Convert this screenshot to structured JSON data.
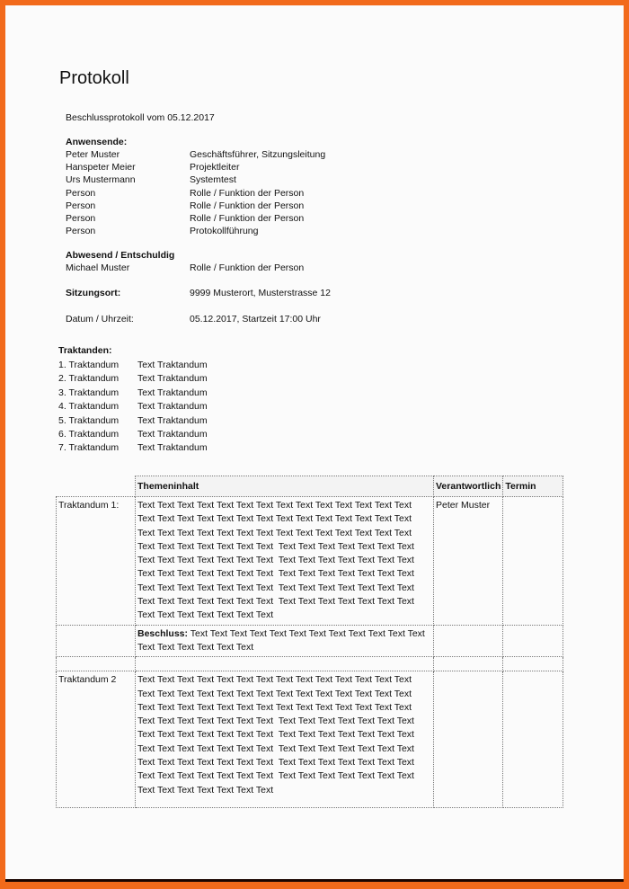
{
  "title": "Protokoll",
  "subtitle": "Beschlussprotokoll vom 05.12.2017",
  "present_label": "Anwensende:",
  "present": [
    {
      "name": "Peter Muster",
      "role": "Geschäftsführer, Sitzungsleitung"
    },
    {
      "name": "Hanspeter Meier",
      "role": "Projektleiter"
    },
    {
      "name": "Urs Mustermann",
      "role": "Systemtest"
    },
    {
      "name": "Person",
      "role": "Rolle / Funktion der Person"
    },
    {
      "name": "Person",
      "role": "Rolle / Funktion der Person"
    },
    {
      "name": "Person",
      "role": "Rolle / Funktion der Person"
    },
    {
      "name": "Person",
      "role": "Protokollführung"
    }
  ],
  "absent_label": "Abwesend / Entschuldig",
  "absent": {
    "name": "Michael Muster",
    "role": "Rolle / Funktion der Person"
  },
  "location_label": "Sitzungsort:",
  "location": "9999 Musterort, Musterstrasse 12",
  "date_label": "Datum / Uhrzeit:",
  "date": "05.12.2017, Startzeit 17:00 Uhr",
  "agenda_label": "Traktanden:",
  "agenda": [
    {
      "n": "1. Traktandum",
      "t": "Text Traktandum"
    },
    {
      "n": "2. Traktandum",
      "t": "Text Traktandum"
    },
    {
      "n": "3. Traktandum",
      "t": "Text Traktandum"
    },
    {
      "n": "4. Traktandum",
      "t": "Text Traktandum"
    },
    {
      "n": "5. Traktandum",
      "t": "Text Traktandum"
    },
    {
      "n": "6. Traktandum",
      "t": "Text Traktandum"
    },
    {
      "n": "7. Traktandum",
      "t": "Text Traktandum"
    }
  ],
  "table": {
    "headers": [
      "Themeninhalt",
      "Verantwortlich",
      "Termin"
    ],
    "row1": {
      "label": "Traktandum 1:",
      "lines": [
        "Text Text Text Text Text Text Text Text Text Text Text Text Text Text",
        "Text Text Text Text Text Text Text Text Text Text Text Text Text Text",
        "Text Text Text Text Text Text Text Text Text Text Text Text Text Text",
        "Text Text Text Text Text Text Text  Text Text Text Text Text Text Text",
        "Text Text Text Text Text Text Text  Text Text Text Text Text Text Text",
        "Text Text Text Text Text Text Text  Text Text Text Text Text Text Text",
        "Text Text Text Text Text Text Text  Text Text Text Text Text Text Text",
        "Text Text Text Text Text Text Text  Text Text Text Text Text Text Text",
        "Text Text Text Text Text Text Text"
      ],
      "responsible": "Peter Muster"
    },
    "decision": {
      "label": "Beschluss:",
      "text": " Text Text Text Text Text Text Text Text Text Text Text Text",
      "line2": "Text Text Text Text Text Text"
    },
    "row2": {
      "label": "Traktandum 2",
      "lines": [
        "Text Text Text Text Text Text Text Text Text Text Text Text Text Text",
        "Text Text Text Text Text Text Text Text Text Text Text Text Text Text",
        "Text Text Text Text Text Text Text Text Text Text Text Text Text Text",
        "Text Text Text Text Text Text Text  Text Text Text Text Text Text Text",
        "Text Text Text Text Text Text Text  Text Text Text Text Text Text Text",
        "Text Text Text Text Text Text Text  Text Text Text Text Text Text Text",
        "Text Text Text Text Text Text Text  Text Text Text Text Text Text Text",
        "Text Text Text Text Text Text Text  Text Text Text Text Text Text Text",
        "Text Text Text Text Text Text Text"
      ]
    }
  }
}
